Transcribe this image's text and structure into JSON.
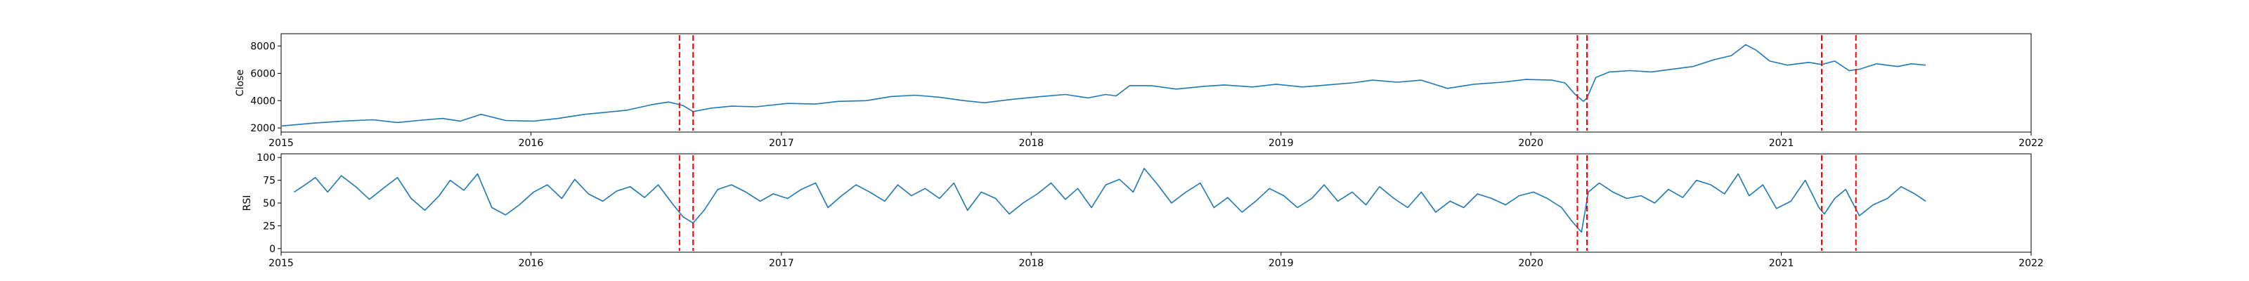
{
  "figure": {
    "colors": {
      "line": "#1f77b4",
      "event": "#ff0000",
      "axis": "#000000"
    }
  },
  "chart_data": [
    {
      "type": "line",
      "ylabel": "Close",
      "xlim": [
        "2015-01-01",
        "2022-01-01"
      ],
      "ylim": [
        1700,
        8900
      ],
      "x_ticks": [
        "2015",
        "2016",
        "2017",
        "2018",
        "2019",
        "2020",
        "2021",
        "2022"
      ],
      "y_ticks": [
        2000,
        4000,
        6000,
        8000
      ],
      "grid": false,
      "event_lines": [
        "2016-08-05",
        "2016-08-25",
        "2020-03-09",
        "2020-03-23",
        "2021-03-01",
        "2021-04-20"
      ],
      "series": [
        {
          "x": [
            "2015-01-02",
            "2015-02-15",
            "2015-04-01",
            "2015-05-15",
            "2015-06-20",
            "2015-07-20",
            "2015-08-25",
            "2015-09-20",
            "2015-10-20",
            "2015-11-25",
            "2016-01-05",
            "2016-02-10",
            "2016-03-20",
            "2016-04-20",
            "2016-05-20",
            "2016-06-25",
            "2016-07-20",
            "2016-08-10",
            "2016-08-25",
            "2016-09-20",
            "2016-10-20",
            "2016-11-25",
            "2017-01-10",
            "2017-02-20",
            "2017-03-25",
            "2017-05-05",
            "2017-06-10",
            "2017-07-15",
            "2017-08-20",
            "2017-09-25",
            "2017-10-25",
            "2017-12-05",
            "2018-01-15",
            "2018-02-20",
            "2018-03-25",
            "2018-04-20",
            "2018-05-05",
            "2018-05-25",
            "2018-06-25",
            "2018-08-01",
            "2018-09-10",
            "2018-10-10",
            "2018-11-20",
            "2018-12-25",
            "2019-02-01",
            "2019-03-10",
            "2019-04-15",
            "2019-05-15",
            "2019-06-20",
            "2019-07-25",
            "2019-09-01",
            "2019-10-10",
            "2019-11-20",
            "2019-12-25",
            "2020-02-01",
            "2020-02-20",
            "2020-03-05",
            "2020-03-18",
            "2020-03-23",
            "2020-04-05",
            "2020-04-25",
            "2020-05-25",
            "2020-06-25",
            "2020-07-25",
            "2020-08-25",
            "2020-09-25",
            "2020-10-20",
            "2020-11-10",
            "2020-11-25",
            "2020-12-15",
            "2021-01-10",
            "2021-02-10",
            "2021-03-01",
            "2021-03-20",
            "2021-04-10",
            "2021-04-25",
            "2021-05-20",
            "2021-06-20",
            "2021-07-10",
            "2021-07-31"
          ],
          "y": [
            2150,
            2350,
            2500,
            2600,
            2400,
            2550,
            2700,
            2500,
            3000,
            2550,
            2500,
            2700,
            3000,
            3150,
            3300,
            3700,
            3900,
            3650,
            3200,
            3450,
            3600,
            3550,
            3800,
            3750,
            3950,
            4000,
            4300,
            4400,
            4250,
            4000,
            3850,
            4100,
            4300,
            4450,
            4200,
            4450,
            4350,
            5100,
            5100,
            4850,
            5050,
            5150,
            5000,
            5200,
            5000,
            5150,
            5300,
            5500,
            5350,
            5500,
            4900,
            5200,
            5350,
            5550,
            5500,
            5300,
            4500,
            3950,
            4200,
            5700,
            6100,
            6200,
            6100,
            6300,
            6500,
            7000,
            7300,
            8100,
            7700,
            6900,
            6600,
            6800,
            6650,
            6900,
            6200,
            6300,
            6700,
            6500,
            6700,
            6600
          ]
        }
      ]
    },
    {
      "type": "line",
      "ylabel": "RSI",
      "xlim": [
        "2015-01-01",
        "2022-01-01"
      ],
      "ylim": [
        -4,
        104
      ],
      "x_ticks": [
        "2015",
        "2016",
        "2017",
        "2018",
        "2019",
        "2020",
        "2021",
        "2022"
      ],
      "y_ticks": [
        0,
        25,
        50,
        75,
        100
      ],
      "grid": false,
      "event_lines": [
        "2016-08-05",
        "2016-08-25",
        "2020-03-09",
        "2020-03-23",
        "2021-03-01",
        "2021-04-20"
      ],
      "series": [
        {
          "x": [
            "2015-01-20",
            "2015-02-05",
            "2015-02-20",
            "2015-03-10",
            "2015-03-30",
            "2015-04-20",
            "2015-05-10",
            "2015-05-30",
            "2015-06-20",
            "2015-07-10",
            "2015-07-30",
            "2015-08-20",
            "2015-09-05",
            "2015-09-25",
            "2015-10-15",
            "2015-11-05",
            "2015-11-25",
            "2015-12-15",
            "2016-01-05",
            "2016-01-25",
            "2016-02-15",
            "2016-03-05",
            "2016-03-25",
            "2016-04-15",
            "2016-05-05",
            "2016-05-25",
            "2016-06-15",
            "2016-07-05",
            "2016-07-25",
            "2016-08-10",
            "2016-08-25",
            "2016-09-10",
            "2016-09-30",
            "2016-10-20",
            "2016-11-10",
            "2016-12-01",
            "2016-12-20",
            "2017-01-10",
            "2017-01-30",
            "2017-02-20",
            "2017-03-10",
            "2017-03-30",
            "2017-04-20",
            "2017-05-10",
            "2017-06-01",
            "2017-06-20",
            "2017-07-10",
            "2017-07-30",
            "2017-08-20",
            "2017-09-10",
            "2017-09-30",
            "2017-10-20",
            "2017-11-10",
            "2017-11-30",
            "2017-12-20",
            "2018-01-10",
            "2018-01-30",
            "2018-02-20",
            "2018-03-10",
            "2018-03-30",
            "2018-04-20",
            "2018-05-10",
            "2018-05-30",
            "2018-06-15",
            "2018-07-05",
            "2018-07-25",
            "2018-08-15",
            "2018-09-05",
            "2018-09-25",
            "2018-10-15",
            "2018-11-05",
            "2018-11-25",
            "2018-12-15",
            "2019-01-05",
            "2019-01-25",
            "2019-02-15",
            "2019-03-05",
            "2019-03-25",
            "2019-04-15",
            "2019-05-05",
            "2019-05-25",
            "2019-06-15",
            "2019-07-05",
            "2019-07-25",
            "2019-08-15",
            "2019-09-05",
            "2019-09-25",
            "2019-10-15",
            "2019-11-05",
            "2019-11-25",
            "2019-12-15",
            "2020-01-05",
            "2020-01-25",
            "2020-02-15",
            "2020-03-01",
            "2020-03-15",
            "2020-03-25",
            "2020-04-10",
            "2020-04-30",
            "2020-05-20",
            "2020-06-10",
            "2020-06-30",
            "2020-07-20",
            "2020-08-10",
            "2020-08-30",
            "2020-09-20",
            "2020-10-10",
            "2020-10-30",
            "2020-11-15",
            "2020-12-05",
            "2020-12-25",
            "2021-01-15",
            "2021-02-05",
            "2021-02-25",
            "2021-03-05",
            "2021-03-20",
            "2021-04-05",
            "2021-04-25",
            "2021-05-15",
            "2021-06-05",
            "2021-06-25",
            "2021-07-15",
            "2021-07-31"
          ],
          "y": [
            62,
            70,
            78,
            62,
            80,
            68,
            54,
            66,
            78,
            55,
            42,
            58,
            75,
            64,
            82,
            45,
            37,
            48,
            62,
            70,
            55,
            76,
            60,
            52,
            63,
            68,
            56,
            70,
            50,
            35,
            28,
            42,
            65,
            70,
            62,
            52,
            60,
            55,
            65,
            72,
            45,
            58,
            70,
            62,
            52,
            70,
            58,
            66,
            55,
            72,
            42,
            62,
            55,
            38,
            50,
            60,
            72,
            54,
            66,
            45,
            70,
            76,
            62,
            88,
            70,
            50,
            62,
            72,
            45,
            56,
            40,
            52,
            66,
            58,
            45,
            55,
            70,
            52,
            62,
            48,
            68,
            55,
            45,
            62,
            40,
            52,
            45,
            60,
            55,
            48,
            58,
            62,
            55,
            45,
            30,
            18,
            62,
            72,
            62,
            55,
            58,
            50,
            65,
            56,
            75,
            70,
            60,
            82,
            58,
            70,
            44,
            52,
            75,
            45,
            38,
            55,
            65,
            36,
            48,
            55,
            68,
            60,
            52
          ]
        }
      ]
    }
  ]
}
